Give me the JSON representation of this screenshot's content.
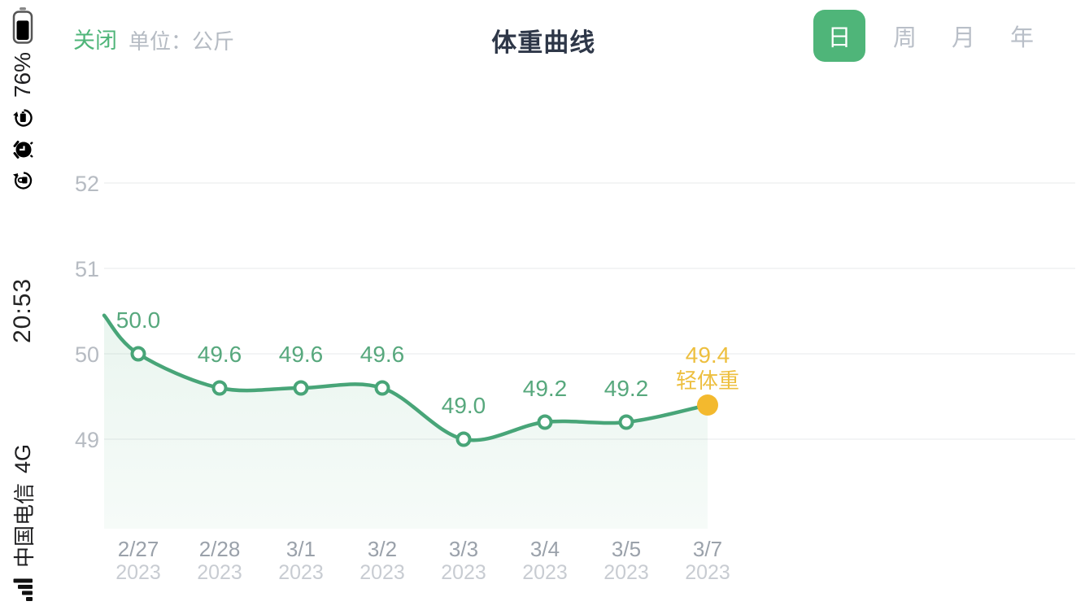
{
  "theme": {
    "green": "#4fb579",
    "title_color": "#2e3748",
    "inactive_tab_color": "#b9bfc8"
  },
  "status_bar": {
    "time": "20:53",
    "battery_percent": "76%",
    "battery_level": 0.76,
    "network": "4G",
    "carrier": "中国电信"
  },
  "header": {
    "close_label": "关闭",
    "unit_label": "单位：公斤",
    "title": "体重曲线",
    "tabs": [
      {
        "id": "day",
        "label": "日",
        "active": true
      },
      {
        "id": "week",
        "label": "周",
        "active": false
      },
      {
        "id": "month",
        "label": "月",
        "active": false
      },
      {
        "id": "year",
        "label": "年",
        "active": false
      }
    ]
  },
  "chart_data": {
    "type": "line",
    "title": "体重曲线",
    "ylabel": "公斤",
    "categories": [
      "2/27",
      "2/28",
      "3/1",
      "3/2",
      "3/3",
      "3/4",
      "3/5",
      "3/7"
    ],
    "category_year": "2023",
    "values": [
      50.0,
      49.6,
      49.6,
      49.6,
      49.0,
      49.2,
      49.2,
      49.4
    ],
    "point_labels": [
      "50.0",
      "49.6",
      "49.6",
      "49.6",
      "49.0",
      "49.2",
      "49.2",
      "49.4"
    ],
    "last_point_annotation": "轻体重",
    "y_ticks": [
      49,
      50,
      51,
      52
    ],
    "ylim": [
      48.6,
      52.6
    ],
    "grid": true,
    "legend": false,
    "area_fill": true,
    "left_edge_entry_value": 50.45,
    "colors": {
      "line": "#48a578",
      "marker_fill": "#ffffff",
      "value_label": "#57a87d",
      "highlight_point": "#f3b92e",
      "highlight_label": "#edbf3f",
      "area_top": "rgba(104,186,142,0.14)",
      "area_bottom": "rgba(104,186,142,0.06)",
      "grid": "#f3f4f5",
      "tick_label": "#b6bbc2",
      "x_date": "#9aa1aa",
      "x_year": "#c8ccd2"
    }
  }
}
